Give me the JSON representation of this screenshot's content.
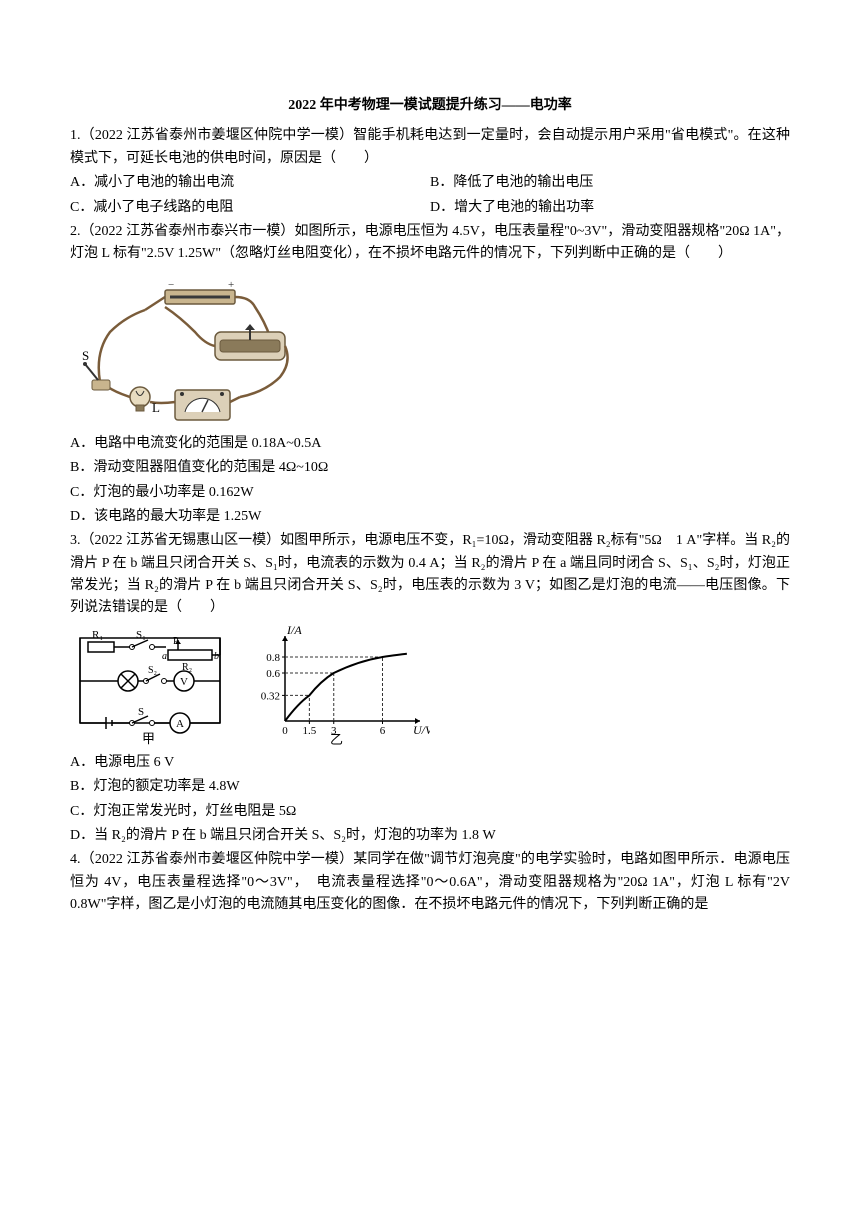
{
  "title": "2022 年中考物理一模试题提升练习——电功率",
  "q1": {
    "stem": "1.（2022 江苏省泰州市姜堰区仲院中学一模）智能手机耗电达到一定量时，会自动提示用户采用\"省电模式\"。在这种模式下，可延长电池的供电时间，原因是（　　）",
    "optA": "A．减小了电池的输出电流",
    "optB": "B．降低了电池的输出电压",
    "optC": "C．减小了电子线路的电阻",
    "optD": "D．增大了电池的输出功率"
  },
  "q2": {
    "stem": "2.（2022 江苏省泰州市泰兴市一模）如图所示，电源电压恒为 4.5V，电压表量程\"0~3V\"，滑动变阻器规格\"20Ω 1A\"，灯泡 L 标有\"2.5V 1.25W\"（忽略灯丝电阻变化），在不损坏电路元件的情况下，下列判断中正确的是（　　）",
    "optA": "A．电路中电流变化的范围是 0.18A~0.5A",
    "optB": "B．滑动变阻器阻值变化的范围是 4Ω~10Ω",
    "optC": "C．灯泡的最小功率是 0.162W",
    "optD": "D．该电路的最大功率是 1.25W",
    "figure": {
      "labels": {
        "s": "S",
        "l": "L"
      },
      "colors": {
        "wire": "#7a5c3a",
        "frame": "#6b5a3e",
        "bulb_body": "#c9b58e",
        "meter_body": "#dcd0b8",
        "battery": "#3a3a3a"
      }
    }
  },
  "q3": {
    "stem_p1": "3.（2022 江苏省无锡惠山区一模）如图甲所示，电源电压不变，R₁=10Ω，滑动变阻器 R₂标有\"5Ω　1 A\"字样。当 R₂的滑片 P 在 b 端且只闭合开关 S、S₁时，电流表的示数为 0.4 A；当 R₂的滑片 P 在 a 端且同时闭合 S、S₁、S₂时，灯泡正常发光；当 R₂的滑片 P 在 b 端且只闭合开关 S、S₂时，电压表的示数为 3 V；如图乙是灯泡的电流——电压图像。下列说法错误的是（　　）",
    "optA": "A．电源电压 6 V",
    "optB": "B．灯泡的额定功率是 4.8W",
    "optC": "C．灯泡正常发光时，灯丝电阻是 5Ω",
    "optD": "D．当 R₂的滑片 P 在 b 端且只闭合开关 S、S₂时，灯泡的功率为 1.8 W",
    "circuit": {
      "labels": {
        "r1": "R₁",
        "s1": "S₁",
        "p": "P",
        "a": "a",
        "r2": "R₂",
        "b": "b",
        "s2": "S₂",
        "v": "V",
        "s": "S",
        "a_meter": "A",
        "caption": "甲"
      }
    },
    "graph": {
      "ylabel": "I/A",
      "xlabel": "U/V",
      "caption": "乙",
      "yticks": [
        0.32,
        0.6,
        0.8
      ],
      "xticks": [
        0,
        1.5,
        3,
        6
      ],
      "ylim": [
        0,
        1.0
      ],
      "xlim": [
        0,
        8
      ],
      "curve_points": [
        [
          0,
          0
        ],
        [
          1.5,
          0.32
        ],
        [
          3,
          0.6
        ],
        [
          6,
          0.8
        ]
      ],
      "colors": {
        "axis": "#000000",
        "curve": "#000000",
        "dash": "#333333"
      }
    }
  },
  "q4": {
    "stem": "4.（2022 江苏省泰州市姜堰区仲院中学一模）某同学在做\"调节灯泡亮度\"的电学实验时，电路如图甲所示．电源电压恒为 4V，电压表量程选择\"0～3V\"，　电流表量程选择\"0～0.6A\"，滑动变阻器规格为\"20Ω 1A\"，灯泡 L 标有\"2V 0.8W\"字样，图乙是小灯泡的电流随其电压变化的图像．在不损坏电路元件的情况下，下列判断正确的是"
  }
}
